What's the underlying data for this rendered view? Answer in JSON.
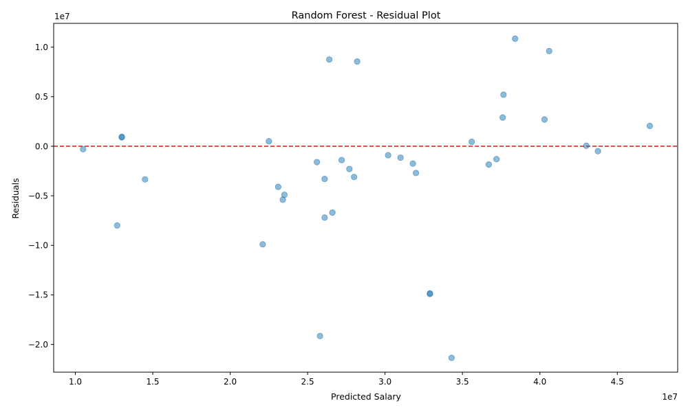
{
  "chart_data": {
    "type": "scatter",
    "title": "Random Forest - Residual Plot",
    "xlabel": "Predicted Salary",
    "ylabel": "Residuals",
    "x_offset_label": "1e7",
    "y_offset_label": "1e7",
    "xlim": [
      0.86,
      4.89
    ],
    "ylim": [
      -2.28,
      1.24
    ],
    "xticks": [
      1.0,
      1.5,
      2.0,
      2.5,
      3.0,
      3.5,
      4.0,
      4.5
    ],
    "xtick_labels": [
      "1.0",
      "1.5",
      "2.0",
      "2.5",
      "3.0",
      "3.5",
      "4.0",
      "4.5"
    ],
    "yticks": [
      1.0,
      0.5,
      0.0,
      -0.5,
      -1.0,
      -1.5,
      -2.0
    ],
    "ytick_labels": [
      "1.0",
      "0.5",
      "0.0",
      "−0.5",
      "−1.0",
      "−1.5",
      "−2.0"
    ],
    "reference_line": {
      "y": 0,
      "color": "#d62728",
      "style": "dashed"
    },
    "marker_color": "#1f77b4",
    "grid": false,
    "points": [
      {
        "x": 1.05,
        "y": -0.03
      },
      {
        "x": 1.27,
        "y": -0.8
      },
      {
        "x": 1.3,
        "y": 0.09
      },
      {
        "x": 1.3,
        "y": 0.095
      },
      {
        "x": 1.45,
        "y": -0.335
      },
      {
        "x": 2.21,
        "y": -0.99
      },
      {
        "x": 2.25,
        "y": 0.05
      },
      {
        "x": 2.31,
        "y": -0.41
      },
      {
        "x": 2.34,
        "y": -0.54
      },
      {
        "x": 2.35,
        "y": -0.49
      },
      {
        "x": 2.56,
        "y": -0.16
      },
      {
        "x": 2.58,
        "y": -1.915
      },
      {
        "x": 2.61,
        "y": -0.33
      },
      {
        "x": 2.61,
        "y": -0.72
      },
      {
        "x": 2.64,
        "y": 0.875
      },
      {
        "x": 2.66,
        "y": -0.67
      },
      {
        "x": 2.72,
        "y": -0.14
      },
      {
        "x": 2.77,
        "y": -0.23
      },
      {
        "x": 2.8,
        "y": -0.31
      },
      {
        "x": 2.82,
        "y": 0.855
      },
      {
        "x": 3.02,
        "y": -0.09
      },
      {
        "x": 3.1,
        "y": -0.115
      },
      {
        "x": 3.18,
        "y": -0.175
      },
      {
        "x": 3.2,
        "y": -0.27
      },
      {
        "x": 3.29,
        "y": -1.49
      },
      {
        "x": 3.29,
        "y": -1.485
      },
      {
        "x": 3.43,
        "y": -2.135
      },
      {
        "x": 3.56,
        "y": 0.045
      },
      {
        "x": 3.67,
        "y": -0.185
      },
      {
        "x": 3.72,
        "y": -0.13
      },
      {
        "x": 3.76,
        "y": 0.29
      },
      {
        "x": 3.765,
        "y": 0.52
      },
      {
        "x": 3.84,
        "y": 1.085
      },
      {
        "x": 4.03,
        "y": 0.27
      },
      {
        "x": 4.06,
        "y": 0.96
      },
      {
        "x": 4.3,
        "y": 0.005
      },
      {
        "x": 4.375,
        "y": -0.05
      },
      {
        "x": 4.71,
        "y": 0.205
      }
    ]
  }
}
